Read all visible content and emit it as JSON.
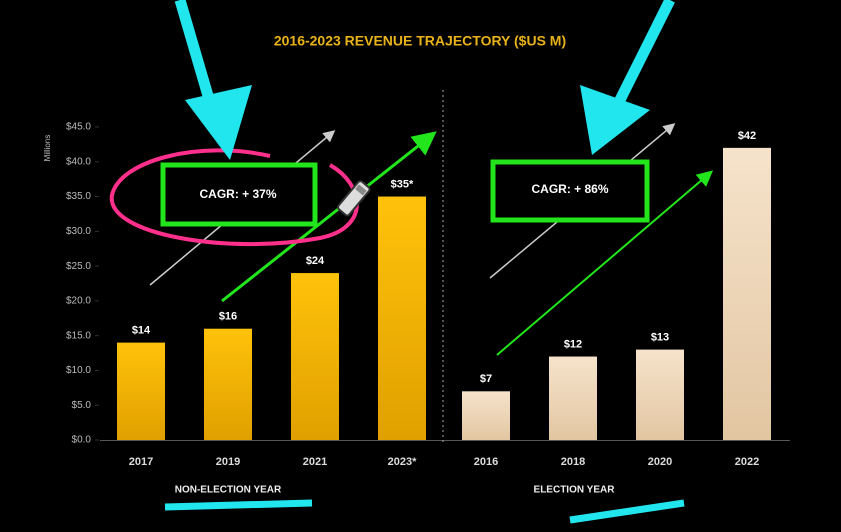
{
  "chart_data": {
    "type": "bar",
    "title": "2016-2023 REVENUE TRAJECTORY ($US M)",
    "y_label": "Millions",
    "ylim": [
      0,
      45
    ],
    "yticks": [
      {
        "value": 0,
        "label": "$0.0"
      },
      {
        "value": 5,
        "label": "$5.0"
      },
      {
        "value": 10,
        "label": "$10.0"
      },
      {
        "value": 15,
        "label": "$15.0"
      },
      {
        "value": 20,
        "label": "$20.0"
      },
      {
        "value": 25,
        "label": "$25.0"
      },
      {
        "value": 30,
        "label": "$30.0"
      },
      {
        "value": 35,
        "label": "$35.0"
      },
      {
        "value": 40,
        "label": "$40.0"
      },
      {
        "value": 45,
        "label": "$45.0"
      }
    ],
    "groups": [
      {
        "label": "NON-ELECTION YEAR",
        "color": "#f5b700",
        "categories": [
          "2017",
          "2019",
          "2021",
          "2023*"
        ],
        "values": [
          14,
          16,
          24,
          35
        ],
        "value_labels": [
          "$14",
          "$16",
          "$24",
          "$35*"
        ],
        "annotation": "CAGR: + 37%"
      },
      {
        "label": "ELECTION YEAR",
        "color": "#f0dcc2",
        "categories": [
          "2016",
          "2018",
          "2020",
          "2022"
        ],
        "values": [
          7,
          12,
          13,
          42
        ],
        "value_labels": [
          "$7",
          "$12",
          "$13",
          "$42"
        ],
        "annotation": "CAGR: + 86%"
      }
    ]
  }
}
